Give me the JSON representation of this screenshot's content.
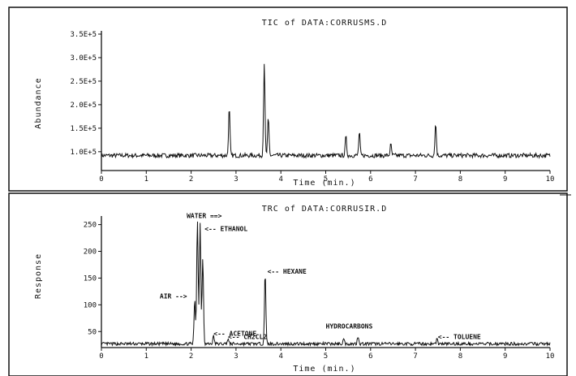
{
  "chart_data": [
    {
      "type": "line",
      "title": "TIC of DATA:CORRUSMS.D",
      "xlabel": "Time (min.)",
      "ylabel": "Abundance",
      "xlim": [
        0,
        10
      ],
      "ylim": [
        60000,
        350000
      ],
      "grid": false,
      "x_ticks": [
        "0",
        "1",
        "2",
        "3",
        "4",
        "5",
        "6",
        "7",
        "8",
        "9",
        "10"
      ],
      "y_ticks": [
        {
          "value": 100000,
          "label": "1.0E+5"
        },
        {
          "value": 150000,
          "label": "1.5E+5"
        },
        {
          "value": 200000,
          "label": "2.0E+5"
        },
        {
          "value": 250000,
          "label": "2.5E+5"
        },
        {
          "value": 300000,
          "label": "3.0E+5"
        },
        {
          "value": 350000,
          "label": "3.5E+5"
        }
      ],
      "baseline": 92000,
      "series": [
        {
          "peaks": [
            {
              "x": 2.85,
              "y": 192000
            },
            {
              "x": 3.63,
              "y": 290000
            },
            {
              "x": 3.72,
              "y": 170000
            },
            {
              "x": 5.45,
              "y": 132000
            },
            {
              "x": 5.75,
              "y": 140000
            },
            {
              "x": 6.45,
              "y": 115000
            },
            {
              "x": 7.45,
              "y": 160000
            }
          ]
        }
      ]
    },
    {
      "type": "line",
      "title": "TRC of DATA:CORRUSIR.D",
      "xlabel": "Time (min.)",
      "ylabel": "Response",
      "xlim": [
        0,
        10
      ],
      "ylim": [
        20,
        260
      ],
      "grid": false,
      "x_ticks": [
        "0",
        "1",
        "2",
        "3",
        "4",
        "5",
        "6",
        "7",
        "8",
        "9",
        "10"
      ],
      "y_ticks": [
        {
          "value": 50,
          "label": "50"
        },
        {
          "value": 100,
          "label": "100"
        },
        {
          "value": 150,
          "label": "150"
        },
        {
          "value": 200,
          "label": "200"
        },
        {
          "value": 250,
          "label": "250"
        }
      ],
      "baseline": 27,
      "series": [
        {
          "peaks": [
            {
              "x": 2.08,
              "y": 110
            },
            {
              "x": 2.14,
              "y": 262
            },
            {
              "x": 2.2,
              "y": 255
            },
            {
              "x": 2.26,
              "y": 190
            },
            {
              "x": 2.5,
              "y": 42
            },
            {
              "x": 2.82,
              "y": 36
            },
            {
              "x": 3.65,
              "y": 160
            },
            {
              "x": 5.4,
              "y": 36
            },
            {
              "x": 5.72,
              "y": 42
            },
            {
              "x": 7.48,
              "y": 36
            }
          ]
        }
      ],
      "annotations": [
        {
          "text": "WATER ==>",
          "x": 1.9,
          "y": 262
        },
        {
          "text": "<-- ETHANOL",
          "x": 2.3,
          "y": 238
        },
        {
          "text": "AIR -->",
          "x": 1.3,
          "y": 112
        },
        {
          "text": "<-- ACETONE",
          "x": 2.5,
          "y": 42
        },
        {
          "text": "<-- CH2CL2",
          "x": 2.82,
          "y": 36
        },
        {
          "text": "<-- HEXANE",
          "x": 3.7,
          "y": 158
        },
        {
          "text": "HYDROCARBONS",
          "x": 5.0,
          "y": 56
        },
        {
          "text": "<-- TOLUENE",
          "x": 7.5,
          "y": 36
        }
      ]
    }
  ]
}
